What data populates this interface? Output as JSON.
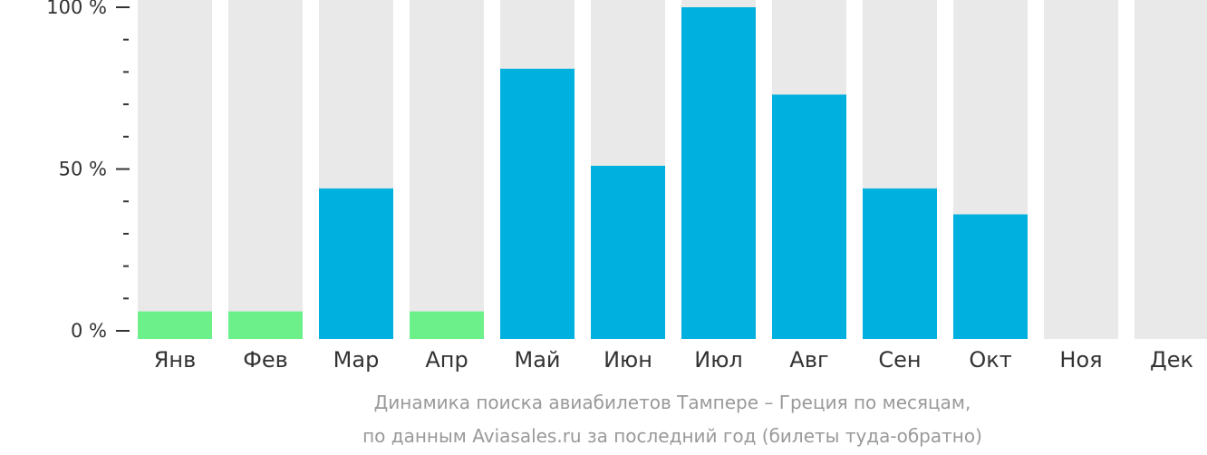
{
  "chart_data": {
    "type": "bar",
    "categories": [
      "Янв",
      "Фев",
      "Мар",
      "Апр",
      "Май",
      "Июн",
      "Июл",
      "Авг",
      "Сен",
      "Окт",
      "Ноя",
      "Дек"
    ],
    "values": [
      6,
      6,
      44,
      6,
      81,
      51,
      100,
      73,
      44,
      36,
      0,
      0
    ],
    "bar_colors": [
      "#6cf08a",
      "#6cf08a",
      "#00b0de",
      "#6cf08a",
      "#00b0de",
      "#00b0de",
      "#00b0de",
      "#00b0de",
      "#00b0de",
      "#00b0de",
      "#00b0de",
      "#00b0de"
    ],
    "background_bar_color": "#e9e9e9",
    "ylim": [
      0,
      100
    ],
    "yticks": [
      {
        "value": 100,
        "label": "100 %"
      },
      {
        "value": 50,
        "label": "50 %"
      },
      {
        "value": 0,
        "label": "0 %"
      }
    ],
    "minor_tick_step": 10,
    "caption_lines": [
      "Динамика поиска авиабилетов Тампере – Греция по месяцам,",
      "по данным Aviasales.ru за последний год (билеты туда-обратно)"
    ],
    "grid": false,
    "legend": "none"
  }
}
